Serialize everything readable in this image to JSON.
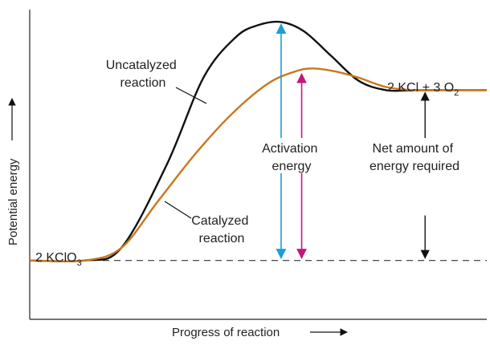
{
  "chart_data": {
    "type": "line",
    "title": "",
    "xlabel": "Progress of reaction",
    "ylabel": "Potential energy",
    "xlim": [
      0,
      100
    ],
    "ylim": [
      0,
      100
    ],
    "grid": false,
    "reactant_level": 19,
    "product_level": 74,
    "series": [
      {
        "name": "Uncatalyzed reaction",
        "color": "#111111",
        "x": [
          0,
          12,
          20,
          30,
          38,
          45,
          50,
          55,
          60,
          66,
          72,
          78,
          84,
          90,
          100
        ],
        "y": [
          19,
          19,
          23,
          50,
          78,
          91,
          95,
          96,
          93,
          85,
          77,
          74,
          74,
          74,
          74
        ]
      },
      {
        "name": "Catalyzed reaction",
        "color": "#c8771e",
        "x": [
          0,
          12,
          20,
          28,
          36,
          44,
          52,
          58,
          62,
          67,
          72,
          78,
          84,
          90,
          100
        ],
        "y": [
          19,
          19,
          23,
          38,
          53,
          66,
          76,
          80,
          81,
          80,
          78,
          75,
          74,
          74,
          74
        ]
      }
    ],
    "annotations": {
      "reactant": {
        "prefix": "2 KClO",
        "sub": "3"
      },
      "product": {
        "prefix": "2 KCl + 3 O",
        "sub": "2"
      },
      "uncatalyzed": [
        "Uncatalyzed",
        "reaction"
      ],
      "catalyzed": [
        "Catalyzed",
        "reaction"
      ],
      "activation": [
        "Activation",
        "energy"
      ],
      "net": [
        "Net amount of",
        "energy required"
      ]
    },
    "colors": {
      "activation_uncatalyzed_arrow": "#1a9fd8",
      "activation_catalyzed_arrow": "#c4167e",
      "net_arrow": "#111111"
    }
  }
}
